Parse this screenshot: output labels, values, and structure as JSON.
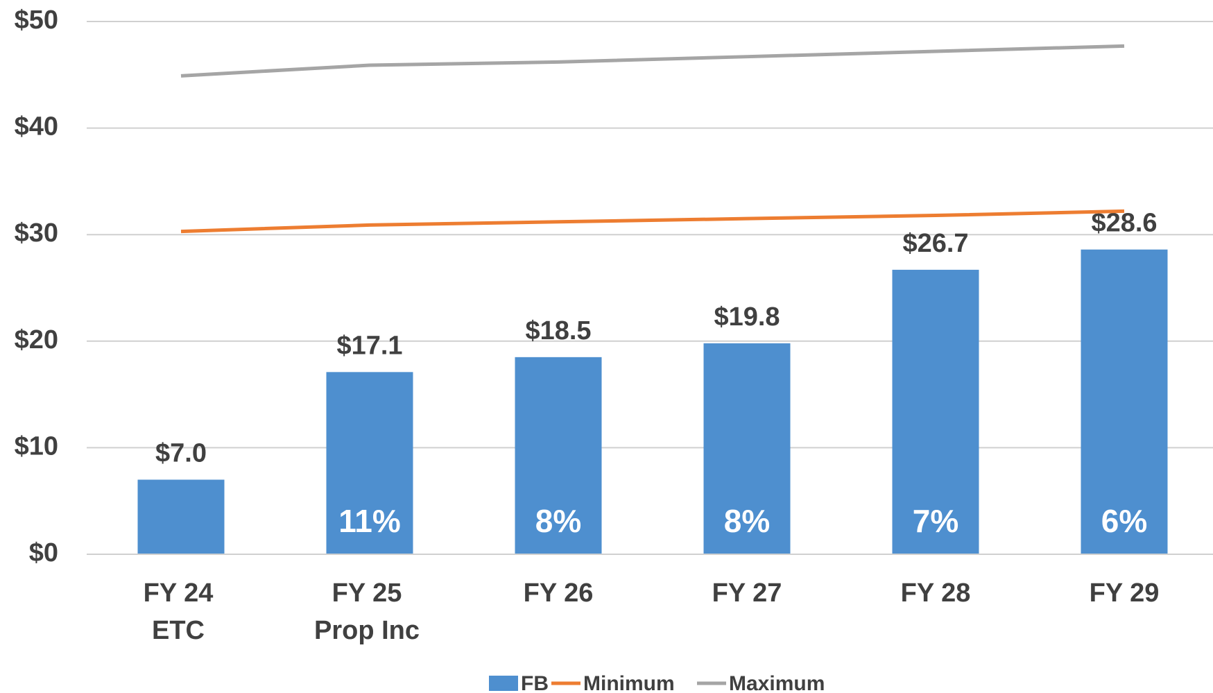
{
  "chart_data": {
    "type": "bar",
    "categories": [
      [
        "FY 24",
        "ETC"
      ],
      [
        "FY 25",
        "Prop Inc"
      ],
      [
        "FY 26"
      ],
      [
        "FY 27"
      ],
      [
        "FY 28"
      ],
      [
        "FY 29"
      ]
    ],
    "ylim": [
      0,
      50
    ],
    "yticks": [
      {
        "value": 0,
        "label": "$0"
      },
      {
        "value": 10,
        "label": "$10"
      },
      {
        "value": 20,
        "label": "$20"
      },
      {
        "value": 30,
        "label": "$30"
      },
      {
        "value": 40,
        "label": "$40"
      },
      {
        "value": 50,
        "label": "$50"
      }
    ],
    "grid": true,
    "legend": "bottom",
    "series": [
      {
        "name": "FB",
        "type": "bar",
        "color": "#4e8fcf",
        "values": [
          7.0,
          17.1,
          18.5,
          19.8,
          26.7,
          28.6
        ],
        "value_labels": [
          "$7.0",
          "$17.1",
          "$18.5",
          "$19.8",
          "$26.7",
          "$28.6"
        ],
        "growth": [
          null,
          11,
          8,
          8,
          7,
          6
        ],
        "growth_labels": [
          null,
          "11%",
          "8%",
          "8%",
          "7%",
          "6%"
        ]
      },
      {
        "name": "Minimum",
        "type": "line",
        "color": "#ed7d31",
        "values": [
          30.3,
          30.9,
          31.2,
          31.5,
          31.8,
          32.2
        ]
      },
      {
        "name": "Maximum",
        "type": "line",
        "color": "#a5a5a5",
        "values": [
          44.9,
          45.9,
          46.2,
          46.7,
          47.2,
          47.7
        ]
      }
    ]
  }
}
